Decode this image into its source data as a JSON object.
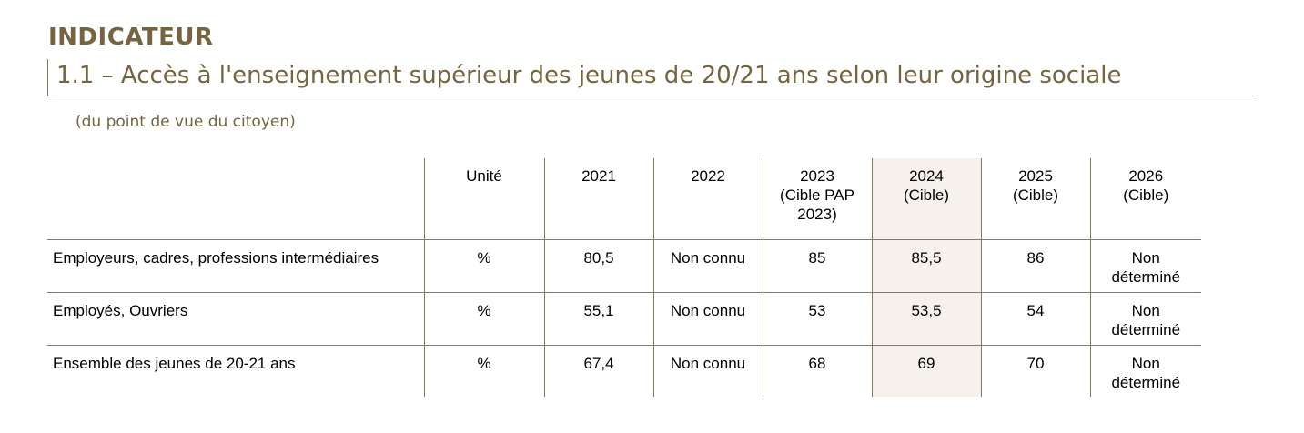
{
  "header": {
    "label": "INDICATEUR",
    "title": "1.1 – Accès à l'enseignement supérieur des jeunes de 20/21 ans selon leur origine sociale",
    "subtitle": "(du point de vue du citoyen)"
  },
  "table": {
    "columns": [
      {
        "lines": [
          ""
        ]
      },
      {
        "lines": [
          "Unité"
        ]
      },
      {
        "lines": [
          "2021"
        ]
      },
      {
        "lines": [
          "2022"
        ]
      },
      {
        "lines": [
          "2023",
          "(Cible PAP",
          "2023)"
        ]
      },
      {
        "lines": [
          "2024",
          "(Cible)"
        ]
      },
      {
        "lines": [
          "2025",
          "(Cible)"
        ]
      },
      {
        "lines": [
          "2026",
          "(Cible)"
        ]
      }
    ],
    "highlight_column": 5,
    "highlight_color": "#f6f1ec",
    "border_color": "#8a7a58",
    "rows": [
      {
        "cells": [
          [
            "Employeurs, cadres, professions intermédiaires"
          ],
          [
            "%"
          ],
          [
            "80,5"
          ],
          [
            "Non connu"
          ],
          [
            "85"
          ],
          [
            "85,5"
          ],
          [
            "86"
          ],
          [
            "Non",
            "déterminé"
          ]
        ]
      },
      {
        "cells": [
          [
            "Employés, Ouvriers"
          ],
          [
            "%"
          ],
          [
            "55,1"
          ],
          [
            "Non connu"
          ],
          [
            "53"
          ],
          [
            "53,5"
          ],
          [
            "54"
          ],
          [
            "Non",
            "déterminé"
          ]
        ]
      },
      {
        "cells": [
          [
            "Ensemble des jeunes de 20-21 ans"
          ],
          [
            "%"
          ],
          [
            "67,4"
          ],
          [
            "Non connu"
          ],
          [
            "68"
          ],
          [
            "69"
          ],
          [
            "70"
          ],
          [
            "Non",
            "déterminé"
          ]
        ]
      }
    ]
  }
}
